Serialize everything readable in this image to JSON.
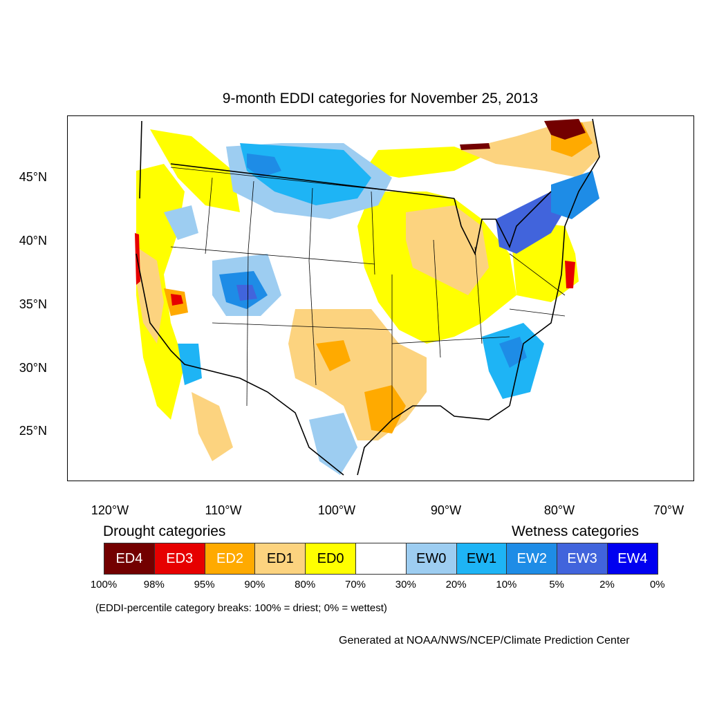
{
  "title": "9-month EDDI categories for November 25, 2013",
  "lat_ticks": [
    "45°N",
    "40°N",
    "35°N",
    "30°N",
    "25°N"
  ],
  "lon_ticks": [
    "120°W",
    "110°W",
    "100°W",
    "90°W",
    "80°W",
    "70°W"
  ],
  "legend": {
    "drought_heading": "Drought categories",
    "wetness_heading": "Wetness categories",
    "categories": [
      {
        "label": "ED4",
        "color": "#730000",
        "text_color": "#ffffff"
      },
      {
        "label": "ED3",
        "color": "#e60000",
        "text_color": "#ffffff"
      },
      {
        "label": "ED2",
        "color": "#ffaa00",
        "text_color": "#ffffff"
      },
      {
        "label": "ED1",
        "color": "#fcd37f",
        "text_color": "#000000"
      },
      {
        "label": "ED0",
        "color": "#ffff00",
        "text_color": "#000000"
      },
      {
        "label": "",
        "color": "#ffffff",
        "text_color": "#000000"
      },
      {
        "label": "EW0",
        "color": "#9dcdf1",
        "text_color": "#000000"
      },
      {
        "label": "EW1",
        "color": "#1eb4f5",
        "text_color": "#000000"
      },
      {
        "label": "EW2",
        "color": "#1e8ce6",
        "text_color": "#ffffff"
      },
      {
        "label": "EW3",
        "color": "#4164dc",
        "text_color": "#ffffff"
      },
      {
        "label": "EW4",
        "color": "#0000f0",
        "text_color": "#ffffff"
      }
    ],
    "breaks": [
      "100%",
      "98%",
      "95%",
      "90%",
      "80%",
      "70%",
      "30%",
      "20%",
      "10%",
      "5%",
      "2%",
      "0%"
    ]
  },
  "footnote": "(EDDI-percentile category breaks: 100% = driest; 0% = wettest)",
  "credit": "Generated at NOAA/NWS/NCEP/Climate Prediction Center"
}
